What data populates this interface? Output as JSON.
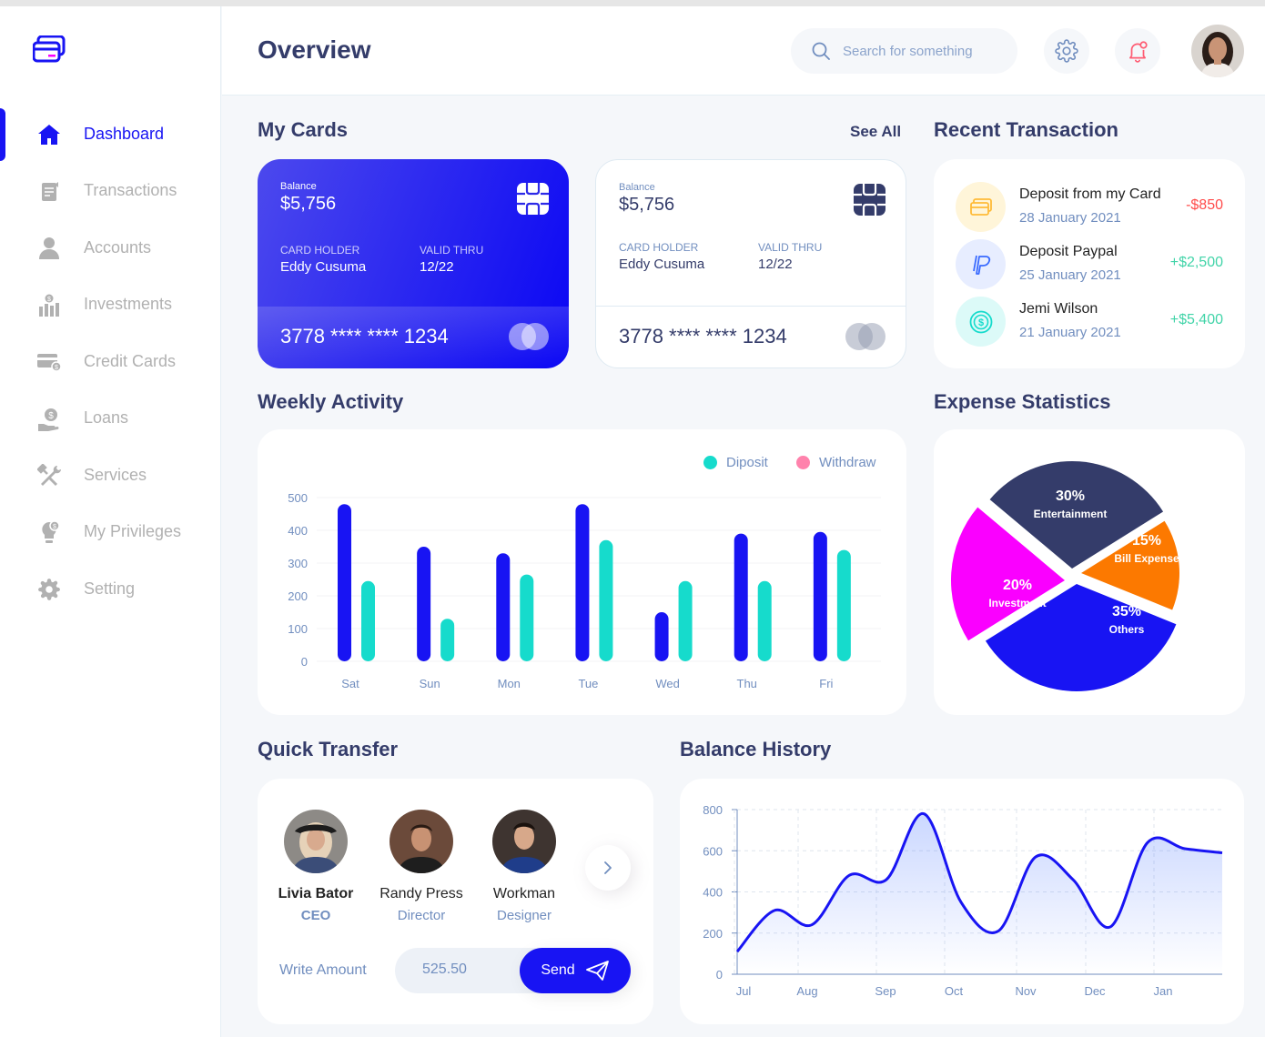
{
  "header": {
    "title": "Overview",
    "search_placeholder": "Search for something"
  },
  "sidebar": {
    "items": [
      {
        "label": "Dashboard",
        "icon": "home-icon",
        "active": true
      },
      {
        "label": "Transactions",
        "icon": "transfer-icon"
      },
      {
        "label": "Accounts",
        "icon": "user-icon"
      },
      {
        "label": "Investments",
        "icon": "investment-icon"
      },
      {
        "label": "Credit Cards",
        "icon": "credit-card-icon"
      },
      {
        "label": "Loans",
        "icon": "loan-icon"
      },
      {
        "label": "Services",
        "icon": "tools-icon"
      },
      {
        "label": "My Privileges",
        "icon": "privilege-icon"
      },
      {
        "label": "Setting",
        "icon": "gear-icon"
      }
    ]
  },
  "my_cards": {
    "title": "My Cards",
    "see_all": "See All",
    "cards": [
      {
        "balance_label": "Balance",
        "balance": "$5,756",
        "holder_label": "CARD HOLDER",
        "holder": "Eddy Cusuma",
        "valid_label": "VALID THRU",
        "valid": "12/22",
        "number": "3778 **** **** 1234"
      },
      {
        "balance_label": "Balance",
        "balance": "$5,756",
        "holder_label": "CARD HOLDER",
        "holder": "Eddy Cusuma",
        "valid_label": "VALID THRU",
        "valid": "12/22",
        "number": "3778 **** **** 1234"
      }
    ]
  },
  "recent_transaction": {
    "title": "Recent Transaction",
    "items": [
      {
        "title": "Deposit from my Card",
        "date": "28 January 2021",
        "amount": "-$850",
        "icon": "card-icon"
      },
      {
        "title": "Deposit Paypal",
        "date": "25 January 2021",
        "amount": "+$2,500",
        "icon": "paypal-icon"
      },
      {
        "title": "Jemi Wilson",
        "date": "21 January 2021",
        "amount": "+$5,400",
        "icon": "dollar-coin-icon"
      }
    ]
  },
  "weekly_activity": {
    "title": "Weekly Activity",
    "legend": [
      "Diposit",
      "Withdraw"
    ]
  },
  "expense_statistics": {
    "title": "Expense Statistics"
  },
  "quick_transfer": {
    "title": "Quick Transfer",
    "people": [
      {
        "name": "Livia Bator",
        "role": "CEO"
      },
      {
        "name": "Randy Press",
        "role": "Director"
      },
      {
        "name": "Workman",
        "role": "Designer"
      }
    ],
    "amount_label": "Write Amount",
    "amount_value": "525.50",
    "send_label": "Send"
  },
  "balance_history": {
    "title": "Balance History"
  },
  "colors": {
    "primary": "#1814f3",
    "teal": "#16dbcc",
    "pink": "#ff82ac",
    "negative": "#ff4b4a",
    "positive": "#41d4a8",
    "navy": "#343c6a"
  },
  "chart_data": [
    {
      "type": "bar",
      "title": "Weekly Activity",
      "categories": [
        "Sat",
        "Sun",
        "Mon",
        "Tue",
        "Wed",
        "Thu",
        "Fri"
      ],
      "series": [
        {
          "name": "Diposit",
          "values": [
            480,
            350,
            330,
            480,
            150,
            390,
            395
          ]
        },
        {
          "name": "Withdraw",
          "values": [
            245,
            130,
            265,
            370,
            245,
            245,
            340
          ]
        }
      ],
      "yticks": [
        0,
        100,
        200,
        300,
        400,
        500
      ],
      "ylim": [
        0,
        500
      ],
      "legend": "top-right",
      "grid": true
    },
    {
      "type": "pie",
      "title": "Expense Statistics",
      "slices": [
        {
          "label": "Entertainment",
          "value": 30
        },
        {
          "label": "Bill Expense",
          "value": 15
        },
        {
          "label": "Others",
          "value": 35
        },
        {
          "label": "Investment",
          "value": 20
        }
      ],
      "colors": [
        "#343c6a",
        "#fc7900",
        "#1814f3",
        "#fa00ff"
      ]
    },
    {
      "type": "area",
      "title": "Balance History",
      "categories": [
        "Jul",
        "Aug",
        "Sep",
        "Oct",
        "Nov",
        "Dec",
        "Jan"
      ],
      "x": [
        0,
        0.5,
        1,
        1.5,
        2,
        2.5,
        3,
        3.5,
        4,
        4.5,
        5,
        5.5,
        6,
        6.5
      ],
      "values": [
        110,
        310,
        240,
        480,
        460,
        780,
        350,
        210,
        570,
        460,
        230,
        640,
        610,
        590
      ],
      "yticks": [
        0,
        200,
        400,
        600,
        800
      ],
      "ylim": [
        0,
        800
      ],
      "grid": true
    }
  ]
}
